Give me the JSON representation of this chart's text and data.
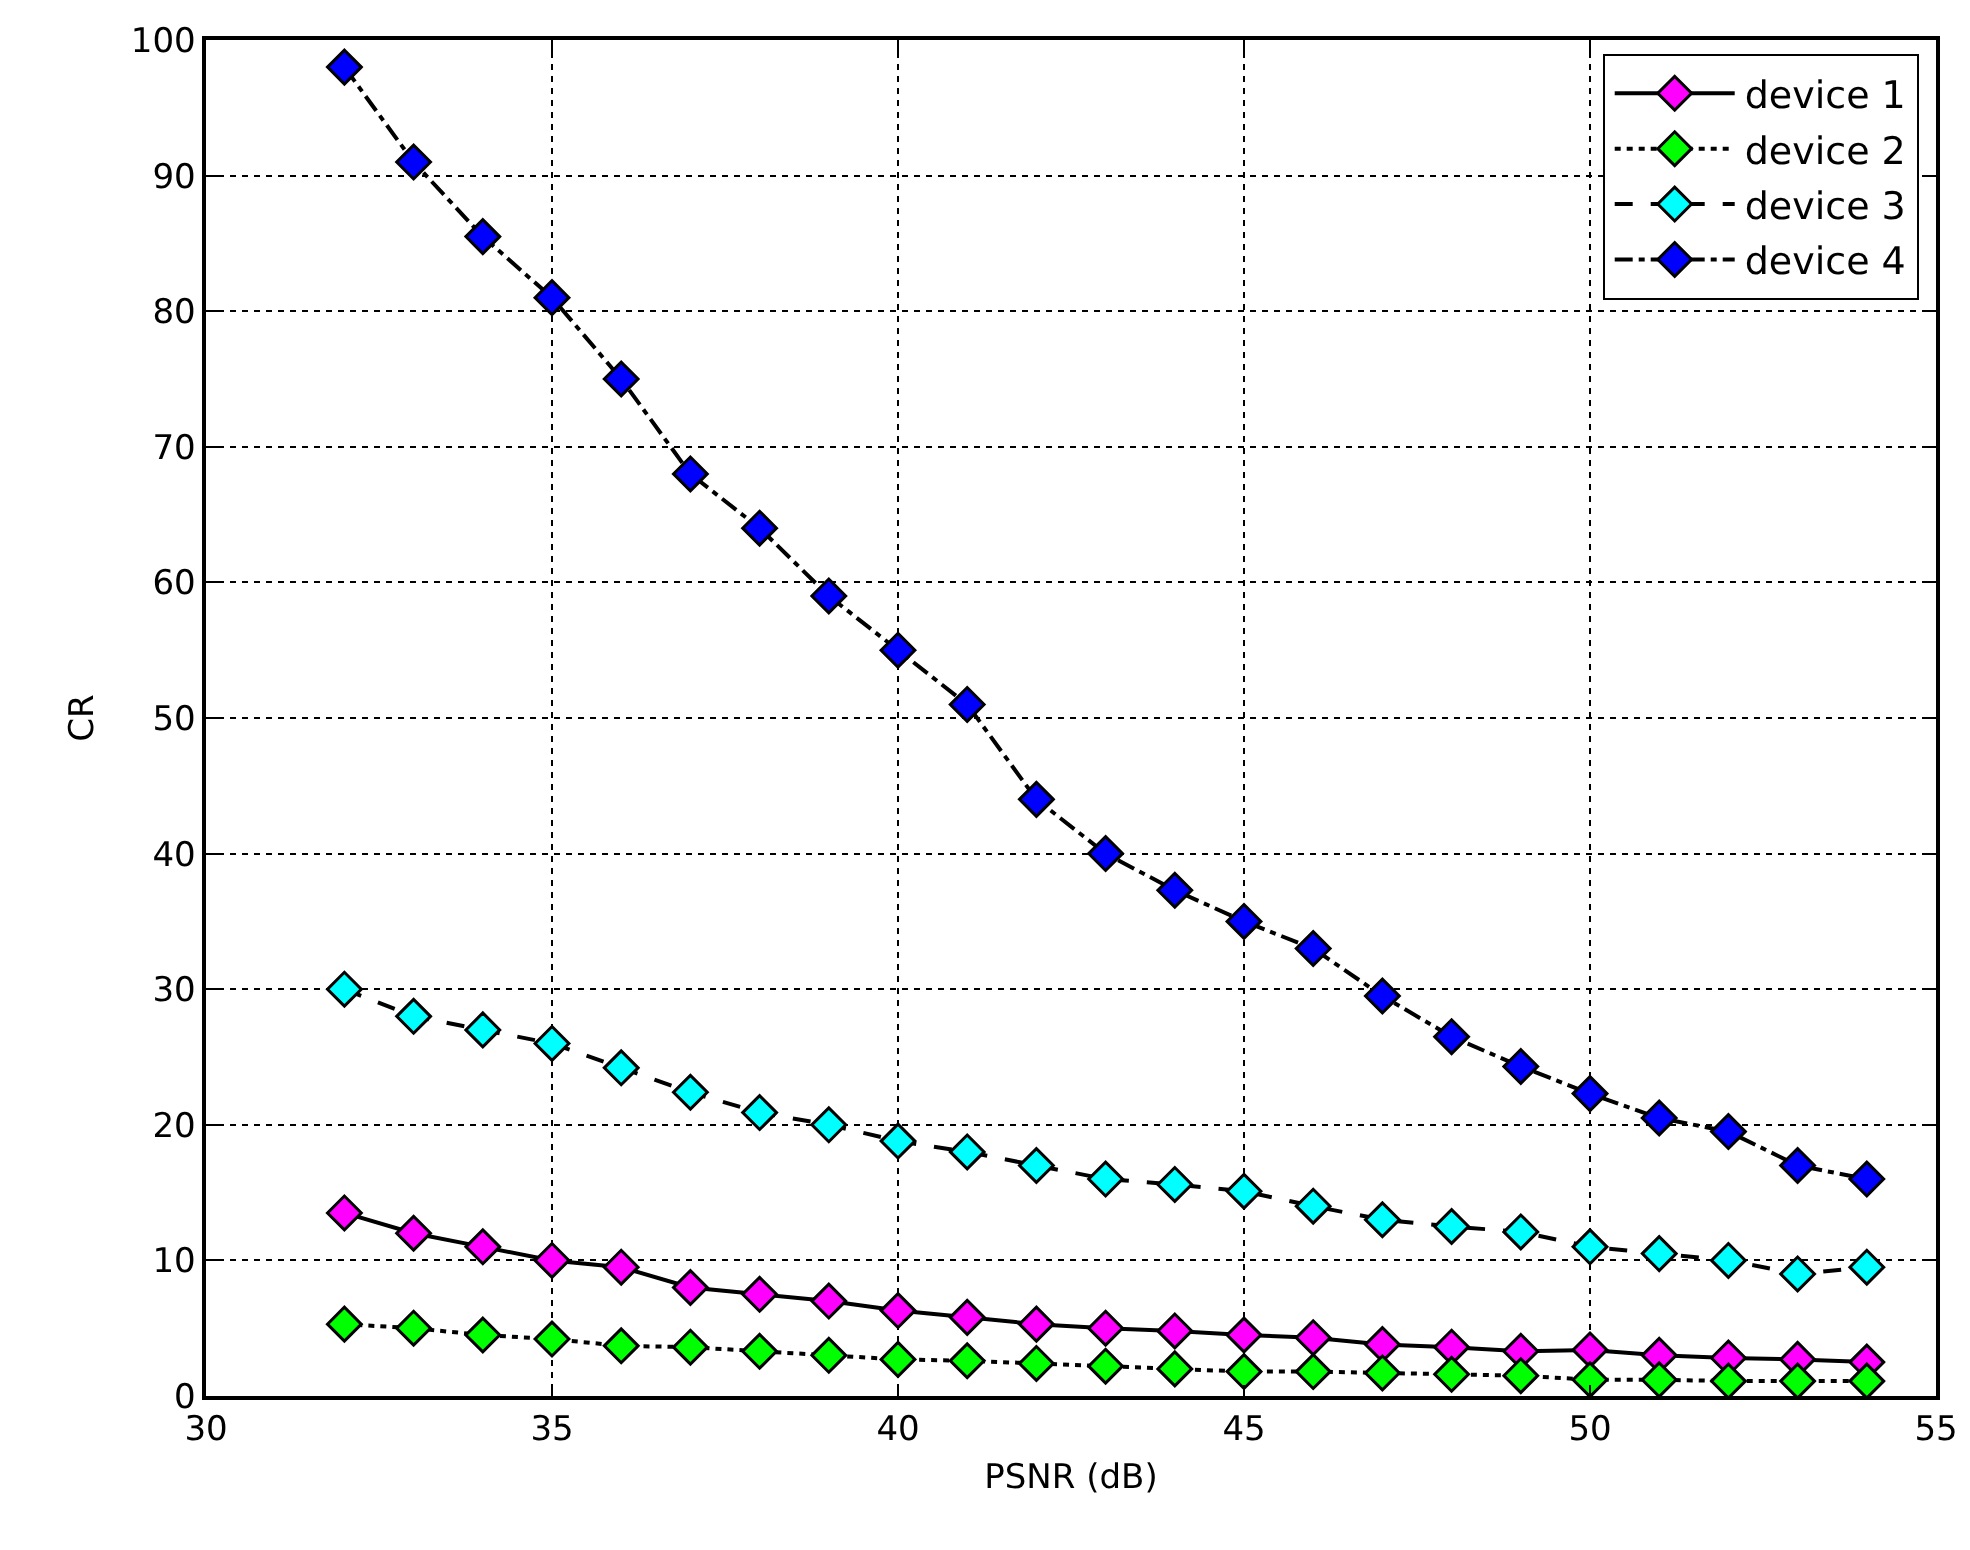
{
  "chart_data": {
    "type": "line",
    "xlabel": "PSNR (dB)",
    "ylabel": "CR",
    "x": [
      32,
      33,
      34,
      35,
      36,
      37,
      38,
      39,
      40,
      41,
      42,
      43,
      44,
      45,
      46,
      47,
      48,
      49,
      50,
      51,
      52,
      53,
      54
    ],
    "series": [
      {
        "name": "device 1",
        "color": "#ff00ff",
        "line_style": "solid",
        "values": [
          13.5,
          12,
          11,
          10,
          9.5,
          8,
          7.5,
          7,
          6.3,
          5.8,
          5.3,
          5,
          4.8,
          4.5,
          4.3,
          3.8,
          3.6,
          3.3,
          3.4,
          3,
          2.8,
          2.7,
          2.5
        ]
      },
      {
        "name": "device 2",
        "color": "#00ff00",
        "line_style": "dotted",
        "values": [
          5.3,
          5,
          4.5,
          4.2,
          3.7,
          3.6,
          3.3,
          3,
          2.7,
          2.6,
          2.4,
          2.2,
          2,
          1.8,
          1.8,
          1.7,
          1.6,
          1.5,
          1.2,
          1.2,
          1.1,
          1.1,
          1.1
        ]
      },
      {
        "name": "device 3",
        "color": "#00ffff",
        "line_style": "dashed",
        "values": [
          30,
          28,
          27,
          26,
          24.2,
          22.4,
          20.9,
          20,
          18.8,
          18,
          17,
          16,
          15.6,
          15.1,
          14,
          13,
          12.5,
          12.1,
          11,
          10.5,
          10,
          9,
          9.5
        ]
      },
      {
        "name": "device 4",
        "color": "#0000ff",
        "line_style": "dashdot",
        "values": [
          98,
          91,
          85.5,
          81,
          75,
          68,
          64,
          59,
          55,
          51,
          44,
          40,
          37.3,
          35,
          33,
          29.5,
          26.5,
          24.3,
          22.3,
          20.5,
          19.5,
          17,
          16
        ]
      }
    ],
    "xlim": [
      30,
      55
    ],
    "xticks": [
      30,
      35,
      40,
      45,
      50,
      55
    ],
    "ylim": [
      0,
      100
    ],
    "yticks": [
      0,
      10,
      20,
      30,
      40,
      50,
      60,
      70,
      80,
      90,
      100
    ],
    "grid": true,
    "legend": "top right",
    "marker": "diamond"
  }
}
